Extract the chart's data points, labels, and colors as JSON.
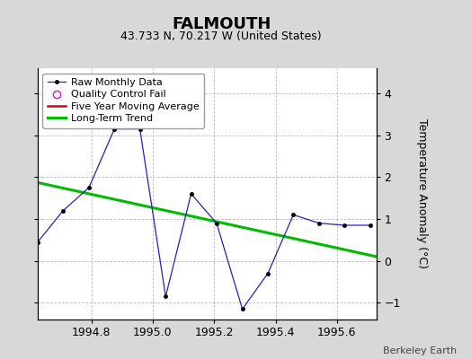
{
  "title": "FALMOUTH",
  "subtitle": "43.733 N, 70.217 W (United States)",
  "credit": "Berkeley Earth",
  "ylabel": "Temperature Anomaly (°C)",
  "xlim": [
    1994.625,
    1995.73
  ],
  "ylim": [
    -1.4,
    4.6
  ],
  "yticks": [
    -1,
    0,
    1,
    2,
    3,
    4
  ],
  "xticks": [
    1994.8,
    1995.0,
    1995.2,
    1995.4,
    1995.6
  ],
  "raw_x": [
    1994.625,
    1994.708,
    1994.792,
    1994.875,
    1994.958,
    1995.042,
    1995.125,
    1995.208,
    1995.292,
    1995.375,
    1995.458,
    1995.542,
    1995.625,
    1995.708
  ],
  "raw_y": [
    0.45,
    1.2,
    1.75,
    3.15,
    3.15,
    -0.85,
    1.6,
    0.9,
    -1.15,
    -0.3,
    1.1,
    0.9,
    0.85,
    0.85
  ],
  "trend_x": [
    1994.625,
    1995.73
  ],
  "trend_y": [
    1.87,
    0.1
  ],
  "bg_color": "#d8d8d8",
  "plot_bg_color": "#ffffff",
  "raw_line_color": "#2222bb",
  "raw_marker_color": "#000000",
  "trend_color": "#00bb00",
  "moving_avg_color": "#dd0000",
  "qc_color": "#ff00ff",
  "title_fontsize": 13,
  "subtitle_fontsize": 9,
  "tick_fontsize": 9,
  "ylabel_fontsize": 9,
  "credit_fontsize": 8,
  "legend_fontsize": 8,
  "grid_color": "#bbbbbb",
  "legend_entries": [
    "Raw Monthly Data",
    "Quality Control Fail",
    "Five Year Moving Average",
    "Long-Term Trend"
  ]
}
